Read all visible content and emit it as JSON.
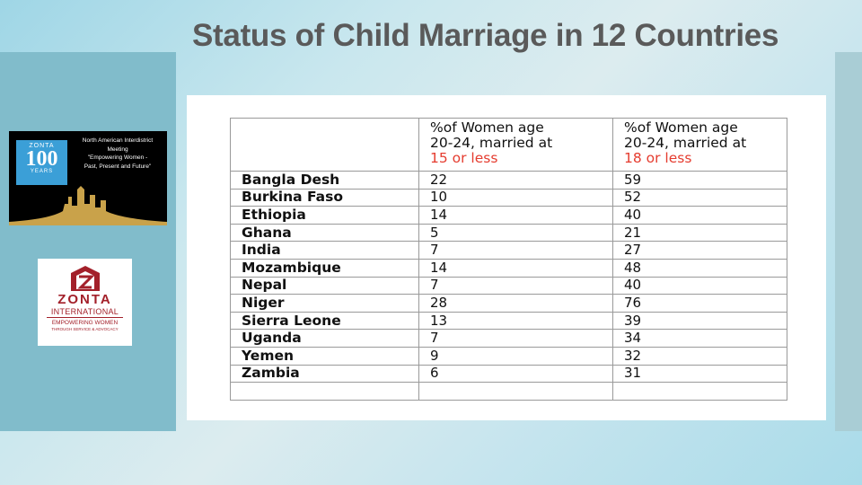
{
  "title": "Status of Child Marriage in 12 Countries",
  "logo_meeting": {
    "badge_top": "ZONTA",
    "badge_number": "100",
    "badge_bottom": "YEARS",
    "lines": [
      "North American Interdistrict",
      "Meeting",
      "\"Empowering Women -",
      "Past, Present and Future\""
    ]
  },
  "logo_zonta": {
    "name": "ZONTA",
    "intl": "INTERNATIONAL",
    "tagline": "EMPOWERING WOMEN",
    "subline": "THROUGH SERVICE & ADVOCACY"
  },
  "table": {
    "headers": [
      {
        "lines": [
          ""
        ],
        "highlight": ""
      },
      {
        "lines": [
          "%of Women age",
          "20-24, married at"
        ],
        "highlight": "15 or less"
      },
      {
        "lines": [
          "%of Women age",
          "20-24, married at"
        ],
        "highlight": "18 or less"
      }
    ],
    "rows": [
      {
        "country": "Bangla Desh",
        "pct15": "22",
        "pct18": "59"
      },
      {
        "country": "Burkina Faso",
        "pct15": "10",
        "pct18": "52"
      },
      {
        "country": "Ethiopia",
        "pct15": "14",
        "pct18": "40"
      },
      {
        "country": "Ghana",
        "pct15": "5",
        "pct18": "21"
      },
      {
        "country": "India",
        "pct15": "7",
        "pct18": "27"
      },
      {
        "country": "Mozambique",
        "pct15": "14",
        "pct18": "48"
      },
      {
        "country": "Nepal",
        "pct15": "7",
        "pct18": "40"
      },
      {
        "country": "Niger",
        "pct15": "28",
        "pct18": "76"
      },
      {
        "country": "Sierra Leone",
        "pct15": "13",
        "pct18": "39"
      },
      {
        "country": "Uganda",
        "pct15": "7",
        "pct18": "34"
      },
      {
        "country": "Yemen",
        "pct15": "9",
        "pct18": "32"
      },
      {
        "country": "Zambia",
        "pct15": "6",
        "pct18": "31"
      },
      {
        "country": "",
        "pct15": "",
        "pct18": ""
      }
    ]
  },
  "colors": {
    "title": "#5a5a5a",
    "highlight": "#e53c2f",
    "zonta_red": "#a3202a",
    "badge_blue": "#3b9fd7"
  }
}
